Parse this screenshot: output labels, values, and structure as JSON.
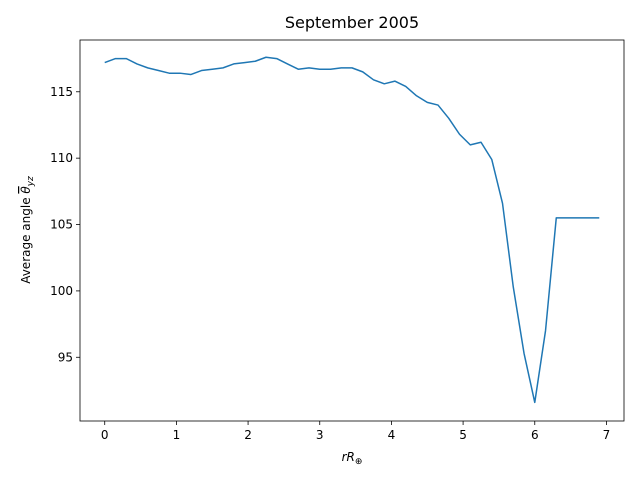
{
  "chart_data": {
    "type": "line",
    "title": "September 2005",
    "xlabel_parts": {
      "main": "rR",
      "sub": "⊕"
    },
    "ylabel_parts": {
      "main": "Average angle ",
      "symbol": "θ",
      "sub": "yz"
    },
    "xlim": [
      -0.345,
      7.245
    ],
    "ylim": [
      90.2,
      118.9
    ],
    "xticks": [
      0,
      1,
      2,
      3,
      4,
      5,
      6,
      7
    ],
    "yticks": [
      95,
      100,
      105,
      110,
      115
    ],
    "line_color": "#1f77b4",
    "grid": false,
    "series": [
      {
        "x": [
          0.0,
          0.15,
          0.3,
          0.45,
          0.6,
          0.75,
          0.9,
          1.05,
          1.2,
          1.35,
          1.5,
          1.65,
          1.8,
          1.95,
          2.1,
          2.25,
          2.4,
          2.55,
          2.7,
          2.85,
          3.0,
          3.15,
          3.3,
          3.45,
          3.6,
          3.75,
          3.9,
          4.05,
          4.2,
          4.35,
          4.5,
          4.65,
          4.8,
          4.95,
          5.1,
          5.25,
          5.4,
          5.55,
          5.7,
          5.85,
          6.0,
          6.15,
          6.3,
          6.45,
          6.6,
          6.75,
          6.9
        ],
        "y": [
          117.2,
          117.5,
          117.5,
          117.1,
          116.8,
          116.6,
          116.4,
          116.4,
          116.3,
          116.6,
          116.7,
          116.8,
          117.1,
          117.2,
          117.3,
          117.6,
          117.5,
          117.1,
          116.7,
          116.8,
          116.7,
          116.7,
          116.8,
          116.8,
          116.5,
          115.9,
          115.6,
          115.8,
          115.4,
          114.7,
          114.2,
          114.0,
          113.0,
          111.8,
          111.0,
          111.2,
          109.9,
          106.6,
          100.3,
          95.3,
          91.6,
          97.0,
          105.5,
          105.5,
          105.5,
          105.5,
          105.5
        ]
      }
    ]
  }
}
